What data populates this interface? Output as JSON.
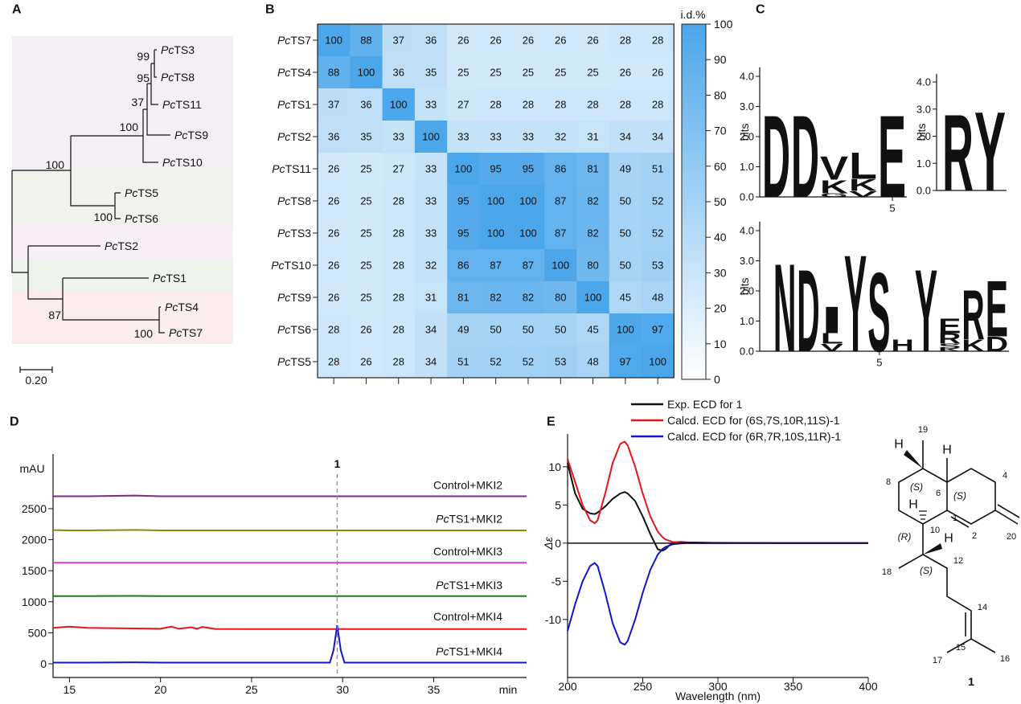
{
  "panel_labels": [
    "A",
    "B",
    "C",
    "D",
    "E"
  ],
  "tree": {
    "leaves": [
      {
        "label": "PcTS3",
        "color": "#e8141c"
      },
      {
        "label": "PcTS8",
        "color": "#111111"
      },
      {
        "label": "PcTS11",
        "color": "#e8141c"
      },
      {
        "label": "PcTS9",
        "color": "#e8141c"
      },
      {
        "label": "PcTS10",
        "color": "#e8141c"
      },
      {
        "label": "PcTS5",
        "color": "#e8141c"
      },
      {
        "label": "PcTS6",
        "color": "#111111"
      },
      {
        "label": "PcTS2",
        "color": "#e8141c"
      },
      {
        "label": "PcTS1",
        "color": "#e8141c"
      },
      {
        "label": "PcTS4",
        "color": "#e8141c"
      },
      {
        "label": "PcTS7",
        "color": "#111111"
      }
    ],
    "support": [
      99,
      95,
      37,
      100,
      100,
      100,
      87,
      100
    ],
    "scale_label": "0.20"
  },
  "chart_data": [
    {
      "type": "heatmap",
      "colorbar_label": "i.d.%",
      "rows": [
        "PcTS7",
        "PcTS4",
        "PcTS1",
        "PcTS2",
        "PcTS11",
        "PcTS8",
        "PcTS3",
        "PcTS10",
        "PcTS9",
        "PcTS6",
        "PcTS5"
      ],
      "columns": [
        null,
        null,
        null,
        null,
        null,
        null,
        null,
        null,
        null,
        null,
        null
      ],
      "values": [
        [
          100,
          88,
          37,
          36,
          26,
          26,
          26,
          26,
          26,
          28,
          28
        ],
        [
          88,
          100,
          36,
          35,
          25,
          25,
          25,
          25,
          25,
          26,
          26
        ],
        [
          37,
          36,
          100,
          33,
          27,
          28,
          28,
          28,
          28,
          28,
          28
        ],
        [
          36,
          35,
          33,
          100,
          33,
          33,
          33,
          32,
          31,
          34,
          34
        ],
        [
          26,
          25,
          27,
          33,
          100,
          95,
          95,
          86,
          81,
          49,
          51
        ],
        [
          26,
          25,
          28,
          33,
          95,
          100,
          100,
          87,
          82,
          50,
          52
        ],
        [
          26,
          25,
          28,
          33,
          95,
          100,
          100,
          87,
          82,
          50,
          52
        ],
        [
          26,
          25,
          28,
          32,
          86,
          87,
          87,
          100,
          80,
          50,
          53
        ],
        [
          26,
          25,
          28,
          31,
          81,
          82,
          82,
          80,
          100,
          45,
          48
        ],
        [
          28,
          26,
          28,
          34,
          49,
          50,
          50,
          50,
          45,
          100,
          97
        ],
        [
          28,
          26,
          28,
          34,
          51,
          52,
          52,
          53,
          48,
          97,
          100
        ]
      ],
      "clim": [
        0,
        100
      ],
      "colorbar_ticks": [
        0,
        10,
        20,
        30,
        40,
        50,
        60,
        70,
        80,
        90,
        100
      ],
      "colors": [
        "#ffffff",
        "#4ba6ea"
      ]
    },
    {
      "type": "line",
      "ylabel": "mAU",
      "xlabel": "min",
      "x": [
        14.1,
        15,
        16,
        18.6,
        20,
        20.6,
        21,
        21.7,
        22,
        22.3,
        23,
        25,
        29.3,
        29.5,
        29.7,
        29.9,
        30.1,
        32,
        35,
        40.1
      ],
      "xlim": [
        14.1,
        40.1
      ],
      "ylim": [
        -220,
        3380
      ],
      "xticks": [
        15,
        20,
        25,
        30,
        35
      ],
      "yticks": [
        0,
        500,
        1000,
        1500,
        2000,
        2500
      ],
      "marker": {
        "label": "1",
        "x": 29.7
      },
      "series": [
        {
          "name": "Control+MKI2",
          "color": "#7b2d7e",
          "values": [
            2700,
            2700,
            2700,
            2712,
            2700,
            2700,
            2700,
            2700,
            2700,
            2700,
            2700,
            2700,
            2700,
            2700,
            2700,
            2700,
            2700,
            2700,
            2700,
            2700
          ]
        },
        {
          "name": "PcTS1+MKI2",
          "color": "#8a8a1a",
          "values": [
            2155,
            2150,
            2150,
            2158,
            2150,
            2150,
            2150,
            2150,
            2150,
            2150,
            2150,
            2150,
            2150,
            2150,
            2150,
            2150,
            2150,
            2150,
            2150,
            2150
          ]
        },
        {
          "name": "Control+MKI3",
          "color": "#e040e0",
          "values": [
            1630,
            1630,
            1630,
            1630,
            1630,
            1630,
            1630,
            1630,
            1630,
            1630,
            1630,
            1630,
            1630,
            1630,
            1630,
            1630,
            1630,
            1630,
            1630,
            1630
          ]
        },
        {
          "name": "PcTS1+MKI3",
          "color": "#1e7a1e",
          "values": [
            1090,
            1090,
            1092,
            1095,
            1090,
            1090,
            1092,
            1090,
            1090,
            1090,
            1090,
            1090,
            1090,
            1090,
            1090,
            1090,
            1090,
            1090,
            1090,
            1090
          ]
        },
        {
          "name": "Control+MKI4",
          "color": "#e8141c",
          "values": [
            580,
            600,
            580,
            570,
            565,
            600,
            565,
            590,
            565,
            595,
            562,
            560,
            560,
            560,
            560,
            560,
            560,
            560,
            560,
            560
          ]
        },
        {
          "name": "PcTS1+MKI4",
          "color": "#1414d2",
          "values": [
            20,
            20,
            20,
            25,
            20,
            20,
            20,
            20,
            20,
            20,
            20,
            20,
            20,
            220,
            620,
            220,
            20,
            20,
            20,
            20
          ]
        }
      ]
    },
    {
      "type": "line",
      "xlabel": "Wavelength (nm)",
      "ylabel": "Δε",
      "x": [
        200,
        205,
        210,
        215,
        218,
        220,
        225,
        230,
        235,
        238,
        240,
        245,
        250,
        255,
        260,
        263,
        265,
        270,
        275,
        280,
        300,
        350,
        400
      ],
      "xlim": [
        200,
        400
      ],
      "ylim": [
        -17.6,
        14.3
      ],
      "xticks": [
        200,
        250,
        300,
        350,
        400
      ],
      "yticks": [
        -10,
        -5,
        0,
        5,
        10
      ],
      "series": [
        {
          "name": "Exp. ECD for 1",
          "color": "#111111",
          "values": [
            10.5,
            6.5,
            4.5,
            3.9,
            3.8,
            4.0,
            4.8,
            5.8,
            6.5,
            6.7,
            6.5,
            5.5,
            3.5,
            1.2,
            -0.8,
            -1.0,
            -0.8,
            0.1,
            0.15,
            0.1,
            0.05,
            0,
            0
          ]
        },
        {
          "name": "Calcd. ECD for (6S,7S,10R,11S)-1",
          "color": "#e8141c",
          "values": [
            11,
            8,
            5,
            3,
            2.6,
            3,
            6.5,
            10.5,
            13,
            13.3,
            12.8,
            10,
            6.5,
            3.5,
            1.5,
            0.8,
            0.5,
            0.15,
            0.05,
            0,
            0,
            0,
            0
          ]
        },
        {
          "name": "Calcd. ECD for (6R,7R,10S,11R)-1",
          "color": "#1414d2",
          "values": [
            -11.5,
            -8,
            -5,
            -3,
            -2.6,
            -3,
            -6.5,
            -10.5,
            -13,
            -13.3,
            -12.8,
            -10,
            -6.5,
            -3.5,
            -1.5,
            -0.8,
            -0.5,
            -0.15,
            -0.05,
            0,
            0,
            0,
            0
          ]
        }
      ]
    }
  ],
  "logos": [
    {
      "ylabel": "bits",
      "ylim": [
        0,
        4.3
      ],
      "yticks": [
        {
          "value": 0,
          "label": "0.0"
        },
        {
          "value": 1,
          "label": "1.0"
        },
        {
          "value": 2,
          "label": "2.0"
        },
        {
          "value": 3,
          "label": "3.0"
        },
        {
          "value": 4,
          "label": "4.0"
        }
      ],
      "xtick": 5,
      "positions": [
        [
          {
            "letter": "D",
            "bits": 2.8
          }
        ],
        [
          {
            "letter": "D",
            "bits": 2.8
          }
        ],
        [
          {
            "letter": "G",
            "bits": 0.12
          },
          {
            "letter": "K",
            "bits": 0.45
          },
          {
            "letter": "V",
            "bits": 0.8
          }
        ],
        [
          {
            "letter": "V",
            "bits": 0.2
          },
          {
            "letter": "K",
            "bits": 0.4
          },
          {
            "letter": "L",
            "bits": 0.9
          }
        ],
        [
          {
            "letter": "E",
            "bits": 2.8
          }
        ]
      ]
    },
    {
      "ylabel": "bits",
      "ylim": [
        0,
        4.3
      ],
      "yticks": [
        {
          "value": 0,
          "label": "0.0"
        },
        {
          "value": 1,
          "label": "1.0"
        },
        {
          "value": 2,
          "label": "2.0"
        },
        {
          "value": 3,
          "label": "3.0"
        },
        {
          "value": 4,
          "label": "4.0"
        }
      ],
      "positions": [
        [
          {
            "letter": "R",
            "bits": 2.9
          }
        ],
        [
          {
            "letter": "Y",
            "bits": 3.0
          }
        ]
      ]
    },
    {
      "ylabel": "bits",
      "ylim": [
        0,
        4.3
      ],
      "yticks": [
        {
          "value": 0,
          "label": "0.0"
        },
        {
          "value": 1,
          "label": "1.0"
        },
        {
          "value": 2,
          "label": "2.0"
        },
        {
          "value": 3,
          "label": "3.0"
        },
        {
          "value": 4,
          "label": "4.0"
        }
      ],
      "xtick": 5,
      "positions": [
        [
          {
            "letter": "N",
            "bits": 3.0
          }
        ],
        [
          {
            "letter": "D",
            "bits": 2.8
          }
        ],
        [
          {
            "letter": "V",
            "bits": 0.25
          },
          {
            "letter": "L",
            "bits": 0.35
          },
          {
            "letter": "I",
            "bits": 0.9
          }
        ],
        [
          {
            "letter": "Y",
            "bits": 3.3
          }
        ],
        [
          {
            "letter": "S",
            "bits": 2.7
          }
        ],
        [
          {
            "letter": "H",
            "bits": 0.4
          }
        ],
        [
          {
            "letter": "Y",
            "bits": 2.8
          }
        ],
        [
          {
            "letter": "K",
            "bits": 0.1
          },
          {
            "letter": "S",
            "bits": 0.15
          },
          {
            "letter": "R",
            "bits": 0.35
          },
          {
            "letter": "E",
            "bits": 0.5
          }
        ],
        [
          {
            "letter": "K",
            "bits": 0.4
          },
          {
            "letter": "R",
            "bits": 1.7
          }
        ],
        [
          {
            "letter": "D",
            "bits": 0.5
          },
          {
            "letter": "E",
            "bits": 1.9
          }
        ]
      ]
    }
  ],
  "letter_colors": {
    "D": "#1010e0",
    "E": "#1010e0",
    "K": "#1010e0",
    "R": "#1010e0",
    "H": "#1010e0",
    "N": "#1010e0",
    "V": "#111111",
    "L": "#111111",
    "Y": "#111111",
    "I": "#111111",
    "S": "#1a8a1a",
    "G": "#1a8a1a"
  },
  "structure": {
    "labels": [
      "19",
      "H",
      "H",
      "8",
      "(S)",
      "6",
      "(S)",
      "4",
      "H",
      "10",
      "1",
      "2",
      "20",
      "(R)",
      "H",
      "18",
      "(S)",
      "12",
      "14",
      "17",
      "15",
      "16"
    ],
    "compound": "1"
  }
}
